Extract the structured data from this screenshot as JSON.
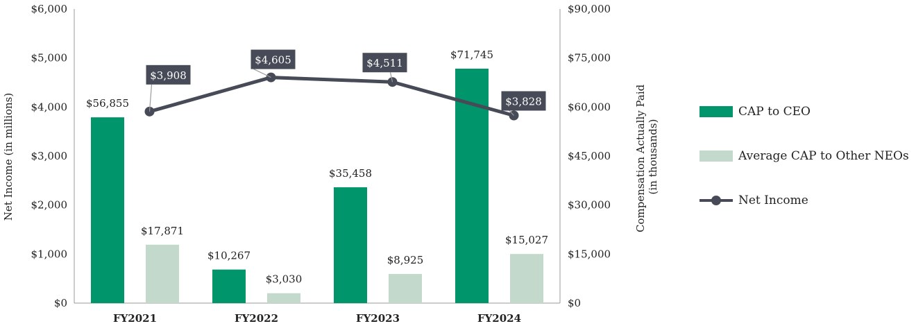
{
  "chart_data": {
    "type": "bar",
    "categories": [
      "FY2021",
      "FY2022",
      "FY2023",
      "FY2024"
    ],
    "series": [
      {
        "name": "CAP to CEO",
        "kind": "bar",
        "axis": "right",
        "color": "#00956a",
        "values": [
          56855,
          10267,
          35458,
          71745
        ],
        "labels": [
          "$56,855",
          "$10,267",
          "$35,458",
          "$71,745"
        ]
      },
      {
        "name": "Average CAP to Other NEOs",
        "kind": "bar",
        "axis": "right",
        "color": "#c2d9cc",
        "values": [
          17871,
          3030,
          8925,
          15027
        ],
        "labels": [
          "$17,871",
          "$3,030",
          "$8,925",
          "$15,027"
        ]
      },
      {
        "name": "Net Income",
        "kind": "line",
        "axis": "left",
        "color": "#474a57",
        "values": [
          3908,
          4605,
          4511,
          3828
        ],
        "labels": [
          "$3,908",
          "$4,605",
          "$4,511",
          "$3,828"
        ]
      }
    ],
    "left_axis": {
      "title": "Net Income (in millions)",
      "range": [
        0,
        6000
      ],
      "ticks": [
        "$0",
        "$1,000",
        "$2,000",
        "$3,000",
        "$4,000",
        "$5,000",
        "$6,000"
      ]
    },
    "right_axis": {
      "title_lines": [
        "Compensation Actually Paid",
        "(in thousands)"
      ],
      "range": [
        0,
        90000
      ],
      "ticks": [
        "$0",
        "$15,000",
        "$30,000",
        "$45,000",
        "$60,000",
        "$75,000",
        "$90,000"
      ]
    },
    "legend_position": "right",
    "grid": false
  }
}
